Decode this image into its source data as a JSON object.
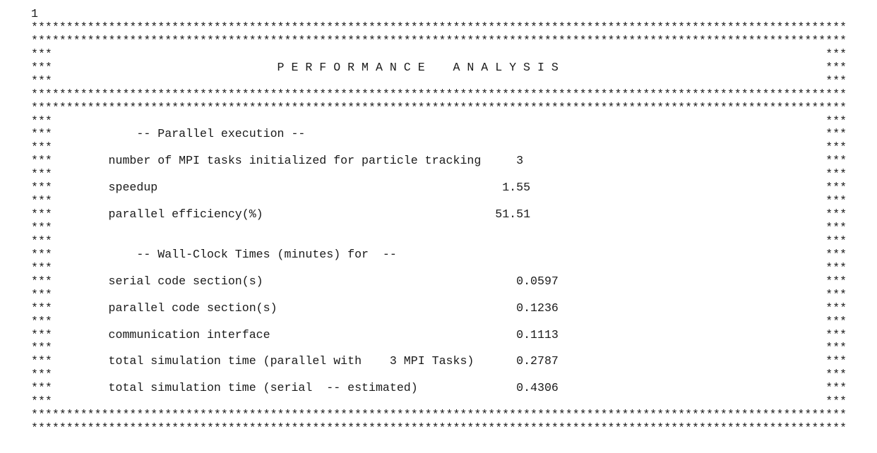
{
  "page_marker": "1",
  "report": {
    "title": "P E R F O R M A N C E    A N A L Y S I S",
    "sections": [
      {
        "heading": "-- Parallel execution --",
        "rows": [
          {
            "label": "number of MPI tasks initialized for particle tracking",
            "value": "3"
          },
          {
            "label": "speedup",
            "value": "1.55"
          },
          {
            "label": "parallel efficiency(%)",
            "value": "51.51"
          }
        ]
      },
      {
        "heading": "-- Wall-Clock Times (minutes) for  --",
        "rows": [
          {
            "label": "serial code section(s)",
            "value": "0.0597"
          },
          {
            "label": "parallel code section(s)",
            "value": "0.1236"
          },
          {
            "label": "communication interface",
            "value": "0.1113"
          },
          {
            "label": "total simulation time (parallel with    3 MPI Tasks)",
            "value": "0.2787"
          },
          {
            "label": "total simulation time (serial  -- estimated)",
            "value": "0.4306"
          }
        ]
      }
    ]
  }
}
